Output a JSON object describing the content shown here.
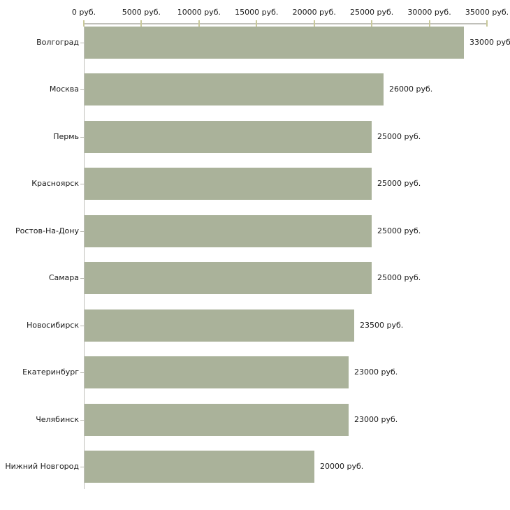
{
  "chart_data": {
    "type": "bar",
    "orientation": "horizontal",
    "categories": [
      "Волгоград",
      "Москва",
      "Пермь",
      "Красноярск",
      "Ростов-На-Дону",
      "Самара",
      "Новосибирск",
      "Екатеринбург",
      "Челябинск",
      "Нижний Новгород"
    ],
    "values": [
      33000,
      26000,
      25000,
      25000,
      25000,
      25000,
      23500,
      23000,
      23000,
      20000
    ],
    "value_labels": [
      "33000 руб",
      "26000 руб.",
      "25000 руб.",
      "25000 руб.",
      "25000 руб.",
      "25000 руб.",
      "23500 руб.",
      "23000 руб.",
      "23000 руб.",
      "20000 руб."
    ],
    "x_tick_values": [
      0,
      5000,
      10000,
      15000,
      20000,
      25000,
      30000,
      35000
    ],
    "x_tick_labels": [
      "0 руб.",
      "5000 руб.",
      "10000 руб.",
      "15000 руб.",
      "20000 руб.",
      "25000 руб.",
      "30000 руб.",
      "35000 руб."
    ],
    "xlim": [
      0,
      35000
    ],
    "unit": "руб.",
    "grid": false,
    "legend": null,
    "colors": {
      "bar": "#aab29a",
      "axis": "#c0c0ba",
      "tick": "#c9c99b",
      "category-tick": "#b6b6ae",
      "text": "#1a1a1a",
      "background": "#ffffff"
    }
  }
}
